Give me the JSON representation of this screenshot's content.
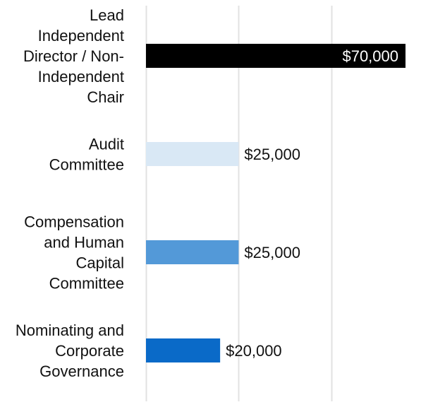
{
  "chart_data": {
    "type": "bar",
    "orientation": "horizontal",
    "categories": [
      "Lead Independent Director / Non-Independent Chair",
      "Audit Committee",
      "Compensation and Human Capital Committee",
      "Nominating and Corporate Governance"
    ],
    "category_lines": [
      [
        "Lead",
        "Independent",
        "Director / Non-",
        "Independent",
        "Chair"
      ],
      [
        "Audit",
        "Committee"
      ],
      [
        "Compensation",
        "and Human",
        "Capital",
        "Committee"
      ],
      [
        "Nominating and",
        "Corporate",
        "Governance"
      ]
    ],
    "values": [
      70000,
      25000,
      25000,
      20000
    ],
    "value_labels": [
      "$70,000",
      "$25,000",
      "$25,000",
      "$20,000"
    ],
    "bar_colors": [
      "#000000",
      "#d9e8f5",
      "#5399d8",
      "#0a6ac8"
    ],
    "value_label_inside": [
      true,
      false,
      false,
      false
    ],
    "xlim": [
      0,
      70000
    ],
    "gridlines": [
      0,
      25000,
      50000
    ],
    "grid": true,
    "title": "",
    "xlabel": "",
    "ylabel": ""
  }
}
